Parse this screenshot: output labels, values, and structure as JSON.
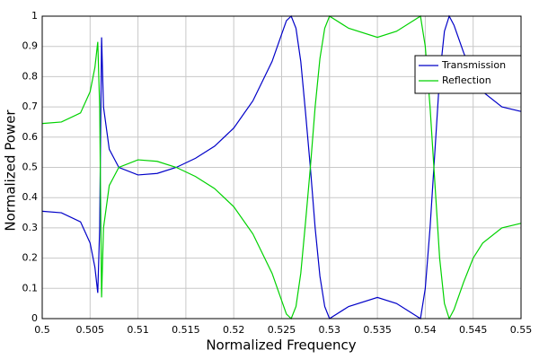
{
  "chart_data": {
    "type": "line",
    "xlabel": "Normalized Frequency",
    "ylabel": "Normalized Power",
    "x": [
      0.5,
      0.502,
      0.504,
      0.505,
      0.5055,
      0.5058,
      0.506,
      0.5062,
      0.5064,
      0.507,
      0.508,
      0.51,
      0.512,
      0.514,
      0.516,
      0.518,
      0.52,
      0.522,
      0.524,
      0.525,
      0.5255,
      0.526,
      0.5265,
      0.527,
      0.5275,
      0.528,
      0.5285,
      0.529,
      0.5295,
      0.53,
      0.532,
      0.535,
      0.537,
      0.539,
      0.5395,
      0.54,
      0.5405,
      0.541,
      0.5415,
      0.542,
      0.5425,
      0.543,
      0.544,
      0.545,
      0.546,
      0.548,
      0.55
    ],
    "series": [
      {
        "name": "Transmission",
        "color": "#0000c8",
        "values": [
          0.355,
          0.35,
          0.32,
          0.25,
          0.17,
          0.085,
          0.3,
          0.93,
          0.7,
          0.56,
          0.5,
          0.475,
          0.48,
          0.5,
          0.53,
          0.57,
          0.63,
          0.72,
          0.85,
          0.94,
          0.985,
          1.0,
          0.96,
          0.85,
          0.68,
          0.5,
          0.3,
          0.14,
          0.04,
          0.0,
          0.04,
          0.07,
          0.05,
          0.01,
          0.0,
          0.1,
          0.3,
          0.55,
          0.8,
          0.95,
          1.0,
          0.97,
          0.88,
          0.8,
          0.75,
          0.7,
          0.685
        ]
      },
      {
        "name": "Reflection",
        "color": "#00d200",
        "values": [
          0.645,
          0.65,
          0.68,
          0.75,
          0.83,
          0.915,
          0.7,
          0.07,
          0.3,
          0.44,
          0.5,
          0.525,
          0.52,
          0.5,
          0.47,
          0.43,
          0.37,
          0.28,
          0.15,
          0.06,
          0.015,
          0.0,
          0.04,
          0.15,
          0.32,
          0.5,
          0.7,
          0.86,
          0.96,
          1.0,
          0.96,
          0.93,
          0.95,
          0.99,
          1.0,
          0.9,
          0.7,
          0.45,
          0.2,
          0.05,
          0.0,
          0.03,
          0.12,
          0.2,
          0.25,
          0.3,
          0.315
        ]
      }
    ],
    "xlim": [
      0.5,
      0.55
    ],
    "xticks": [
      0.5,
      0.505,
      0.51,
      0.515,
      0.52,
      0.525,
      0.53,
      0.535,
      0.54,
      0.545,
      0.55
    ],
    "ylim": [
      0,
      1
    ],
    "yticks": [
      0,
      0.1,
      0.2,
      0.3,
      0.4,
      0.5,
      0.6,
      0.7,
      0.8,
      0.9,
      1
    ],
    "grid": true,
    "legend": "upper right"
  }
}
